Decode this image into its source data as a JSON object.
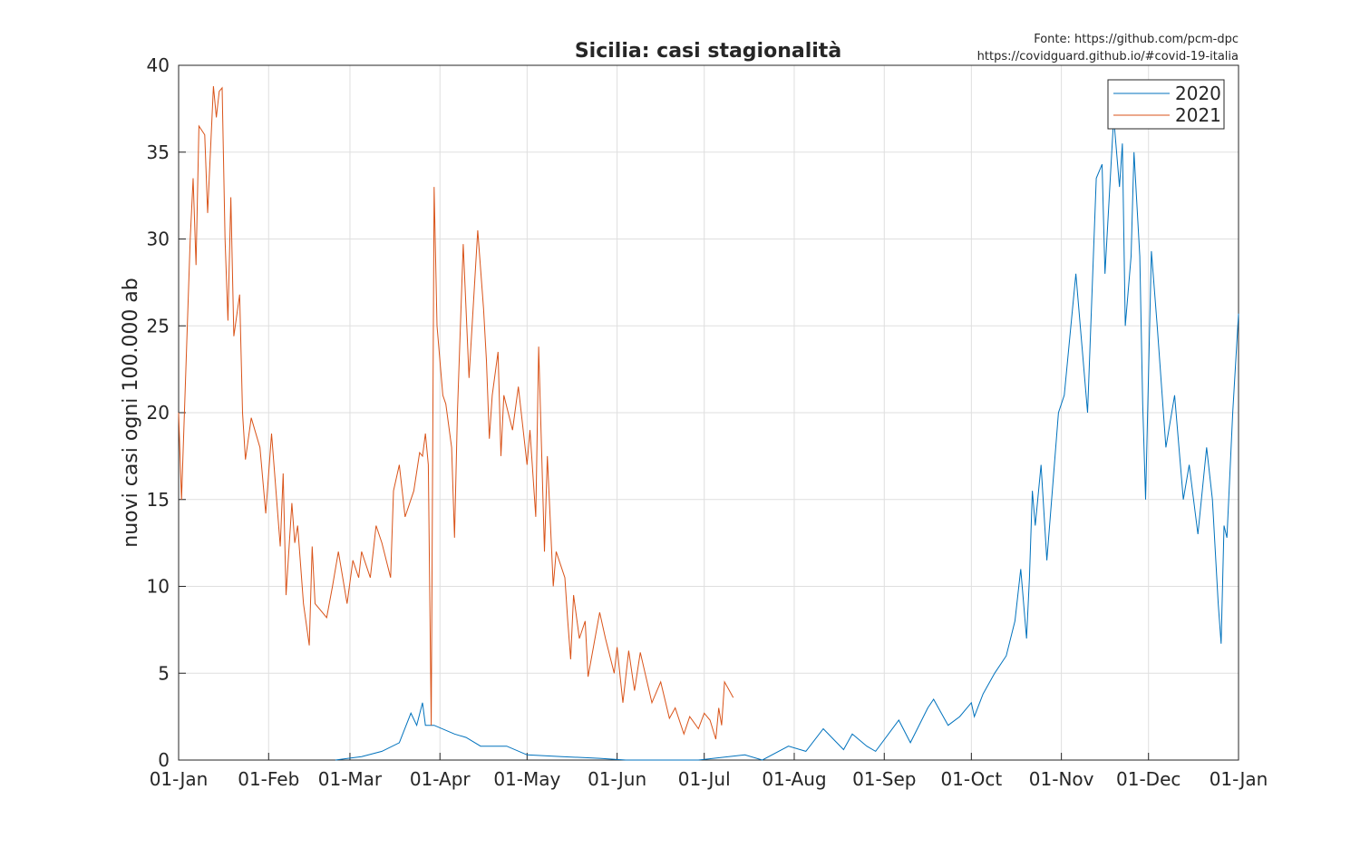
{
  "chart_data": {
    "type": "line",
    "title": "Sicilia: casi stagionalità",
    "source": [
      "Fonte: https://github.com/pcm-dpc",
      "https://covidguard.github.io/#covid-19-italia"
    ],
    "y_label": "nuovi casi ogni 100.000 ab",
    "xlim": [
      0,
      365
    ],
    "xticks": [
      {
        "value": 0,
        "label": "01-Jan"
      },
      {
        "value": 31,
        "label": "01-Feb"
      },
      {
        "value": 59,
        "label": "01-Mar"
      },
      {
        "value": 90,
        "label": "01-Apr"
      },
      {
        "value": 120,
        "label": "01-May"
      },
      {
        "value": 151,
        "label": "01-Jun"
      },
      {
        "value": 181,
        "label": "01-Jul"
      },
      {
        "value": 212,
        "label": "01-Aug"
      },
      {
        "value": 243,
        "label": "01-Sep"
      },
      {
        "value": 273,
        "label": "01-Oct"
      },
      {
        "value": 304,
        "label": "01-Nov"
      },
      {
        "value": 334,
        "label": "01-Dec"
      },
      {
        "value": 365,
        "label": "01-Jan"
      }
    ],
    "ylim": [
      0,
      40
    ],
    "yticks": [
      0,
      5,
      10,
      15,
      20,
      25,
      30,
      35,
      40
    ],
    "grid": true,
    "legend": "top-right",
    "series": [
      {
        "name": "2020",
        "color": "#0072BD",
        "x": [
          54,
          63,
          70,
          76,
          80,
          82,
          84,
          85,
          88,
          95,
          99,
          104,
          113,
          120,
          132,
          145,
          154,
          179,
          195,
          201,
          210,
          216,
          222,
          229,
          232,
          237,
          240,
          248,
          252,
          258,
          260,
          265,
          269,
          273,
          274,
          277,
          281,
          285,
          288,
          290,
          292,
          293,
          294,
          295,
          297,
          299,
          303,
          305,
          309,
          313,
          316,
          318,
          319,
          322,
          324,
          325,
          326,
          328,
          329,
          331,
          332,
          333,
          335,
          337,
          340,
          343,
          346,
          348,
          351,
          354,
          356,
          358,
          359,
          360,
          361,
          363,
          365
        ],
        "values": [
          0,
          0.2,
          0.5,
          1,
          2.7,
          2,
          3.3,
          2,
          2,
          1.5,
          1.3,
          0.8,
          0.8,
          0.3,
          0.2,
          0.1,
          0,
          0,
          0.3,
          0,
          0.8,
          0.5,
          1.8,
          0.6,
          1.5,
          0.8,
          0.5,
          2.3,
          1,
          3,
          3.5,
          2,
          2.5,
          3.3,
          2.5,
          3.8,
          5,
          6,
          8,
          11,
          7,
          10.5,
          15.5,
          13.5,
          17,
          11.5,
          20,
          21,
          28,
          20,
          33.5,
          34.3,
          28,
          37,
          33,
          35.5,
          25,
          29,
          35,
          29,
          20.5,
          15,
          29.3,
          25,
          18,
          21,
          15,
          17,
          13,
          18,
          15,
          9,
          6.7,
          13.5,
          12.8,
          20,
          25.7
        ]
      },
      {
        "name": "2021",
        "color": "#D95319",
        "x": [
          0,
          1,
          3,
          4,
          5,
          6,
          7,
          9,
          10,
          12,
          13,
          14,
          15,
          16,
          17,
          18,
          19,
          21,
          22,
          23,
          25,
          28,
          30,
          32,
          35,
          36,
          37,
          39,
          40,
          41,
          43,
          45,
          46,
          47,
          51,
          53,
          55,
          58,
          60,
          62,
          63,
          66,
          68,
          70,
          73,
          74,
          76,
          78,
          81,
          83,
          84,
          85,
          86,
          87,
          88,
          89,
          91,
          92,
          94,
          95,
          96,
          98,
          100,
          103,
          105,
          106,
          107,
          108,
          110,
          111,
          112,
          115,
          117,
          120,
          121,
          123,
          124,
          126,
          127,
          129,
          130,
          133,
          134,
          135,
          136,
          138,
          140,
          141,
          145,
          147,
          150,
          151,
          153,
          155,
          157,
          159,
          163,
          166,
          169,
          171,
          174,
          176,
          179,
          181,
          183,
          185,
          186,
          187,
          188,
          191
        ],
        "values": [
          20,
          15,
          25,
          30,
          33.5,
          28.5,
          36.5,
          36,
          31.5,
          38.8,
          37,
          38.5,
          38.7,
          30,
          25.3,
          32.4,
          24.4,
          26.8,
          20,
          17.3,
          19.7,
          18,
          14.2,
          18.8,
          12.3,
          16.5,
          9.5,
          14.8,
          12.5,
          13.5,
          9,
          6.6,
          12.3,
          9,
          8.2,
          10,
          12,
          9,
          11.5,
          10.5,
          12,
          10.5,
          13.5,
          12.5,
          10.5,
          15.5,
          17,
          14,
          15.5,
          17.7,
          17.5,
          18.8,
          17,
          2,
          33,
          25,
          21,
          20.5,
          18,
          12.8,
          20,
          29.7,
          22,
          30.5,
          26,
          23,
          18.5,
          21,
          23.5,
          17.5,
          21,
          19,
          21.5,
          17,
          19,
          14,
          23.8,
          12,
          17.5,
          10,
          12,
          10.5,
          8,
          5.8,
          9.5,
          7,
          8,
          4.8,
          8.5,
          7,
          5,
          6.5,
          3.3,
          6.3,
          4,
          6.2,
          3.3,
          4.5,
          2.4,
          3,
          1.5,
          2.5,
          1.8,
          2.7,
          2.3,
          1.2,
          3,
          2,
          4.5,
          3.6
        ]
      }
    ]
  }
}
